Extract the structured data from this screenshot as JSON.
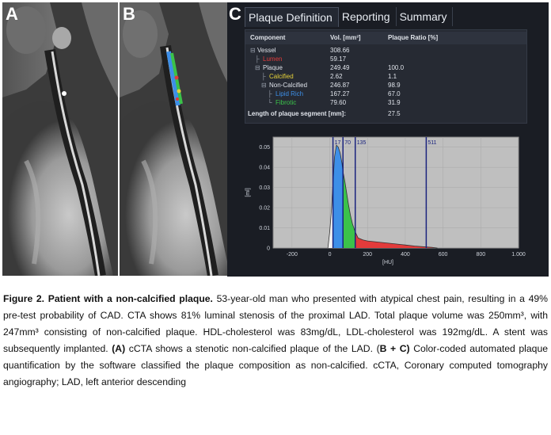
{
  "panels": {
    "a_label": "A",
    "b_label": "B",
    "c_label": "C"
  },
  "tabs": [
    "Plaque Definition",
    "Reporting",
    "Summary"
  ],
  "table": {
    "headers": [
      "Component",
      "Vol. [mm³]",
      "Plaque Ratio [%]"
    ],
    "rows": [
      {
        "name": "Vessel",
        "vol": "308.66",
        "ratio": ""
      },
      {
        "name": "Lumen",
        "vol": "59.17",
        "ratio": ""
      },
      {
        "name": "Plaque",
        "vol": "249.49",
        "ratio": "100.0"
      },
      {
        "name": "Calcified",
        "vol": "2.62",
        "ratio": "1.1"
      },
      {
        "name": "Non-Calcified",
        "vol": "246.87",
        "ratio": "98.9"
      },
      {
        "name": "Lipid Rich",
        "vol": "167.27",
        "ratio": "67.0"
      },
      {
        "name": "Fibrotic",
        "vol": "79.60",
        "ratio": "31.9"
      }
    ],
    "segment_label": "Length of plaque segment [mm]:",
    "segment_value": "27.5"
  },
  "colors": {
    "lumen": "#e23b3b",
    "calcified": "#e6d23a",
    "lipid": "#3d8fe8",
    "fibrotic": "#3bc24a",
    "plot_bg": "#bfbfbf"
  },
  "chart_data": {
    "type": "area",
    "xlabel": "[HU]",
    "ylabel": "[ml]",
    "xlim": [
      -300,
      1000
    ],
    "ylim": [
      0,
      0.055
    ],
    "xticks": [
      -200,
      0,
      200,
      400,
      600,
      800,
      1000
    ],
    "xtick_labels": [
      "-200",
      "0",
      "200",
      "400",
      "600",
      "800",
      "1.000"
    ],
    "yticks": [
      0,
      0.01,
      0.02,
      0.03,
      0.04,
      0.05
    ],
    "ytick_labels": [
      "0",
      "0.01",
      "0.02",
      "0.03",
      "0.04",
      "0.05"
    ],
    "thresholds": [
      17,
      70,
      135,
      511
    ],
    "threshold_labels": [
      "17",
      "70",
      "135",
      "511"
    ],
    "x": [
      -10,
      0,
      10,
      17,
      25,
      35,
      45,
      55,
      65,
      70,
      80,
      90,
      100,
      110,
      120,
      135,
      150,
      175,
      200,
      250,
      300,
      350,
      400,
      450,
      511,
      540,
      570
    ],
    "y": [
      0,
      0.008,
      0.02,
      0.032,
      0.045,
      0.051,
      0.05,
      0.047,
      0.042,
      0.038,
      0.033,
      0.027,
      0.021,
      0.016,
      0.012,
      0.008,
      0.005,
      0.004,
      0.0035,
      0.003,
      0.0025,
      0.002,
      0.0015,
      0.001,
      0.0005,
      0.0003,
      0
    ]
  },
  "caption": {
    "title": "Figure 2. Patient with a non-calcified plaque.",
    "body1": " 53-year-old man who presented with atypical chest pain, resulting in a 49% pre-test probability of CAD.   CTA shows 81% luminal stenosis of the proximal LAD. Total plaque volume was 250mm³, with 247mm³ consisting of non-calcified plaque. HDL-cholesterol was 83mg/dL, LDL-cholesterol was 192mg/dL. A stent was subsequently implanted. ",
    "a_ref": "(A)",
    "body2": " cCTA shows a stenotic non-calcified plaque of the LAD. (",
    "bc_ref": "B + C)",
    "body3": " Color-coded automated plaque quantification by the software classified the plaque composition as non-calcified. cCTA, Coronary computed tomography angiography; LAD, left anterior descending"
  }
}
